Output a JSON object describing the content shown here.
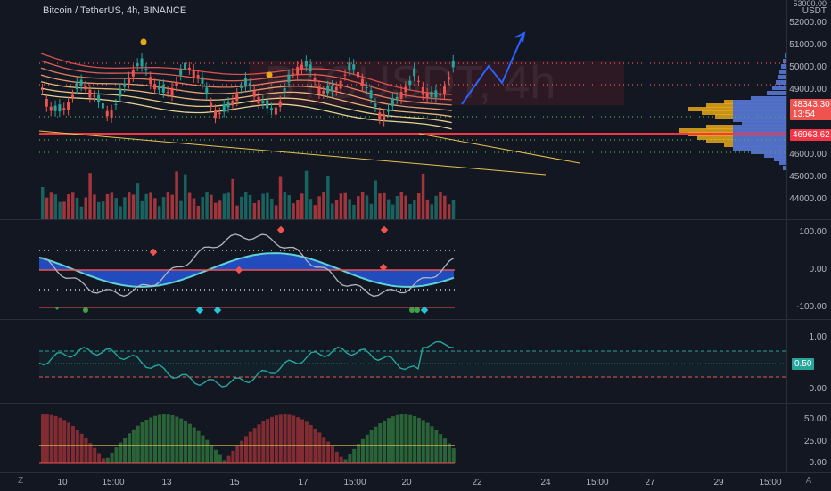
{
  "header": {
    "title": "Bitcoin / TetherUS, 4h, BINANCE",
    "watermark": "BTCUSDT, 4h"
  },
  "price_axis": {
    "currency": "USDT",
    "top_label": "53000.00",
    "labels": [
      "52000.00",
      "51000.00",
      "50000.00",
      "49000.00",
      "46000.00",
      "45000.00",
      "44000.00"
    ],
    "current_price": "48343.30",
    "countdown": "13:54",
    "hline_price": "46963.62"
  },
  "oscillator_pane": {
    "labels": [
      "100.00",
      "0.00",
      "-100.00"
    ]
  },
  "rsi_pane": {
    "labels": [
      "1.00",
      "0.00"
    ],
    "value": "0.50"
  },
  "hist_pane": {
    "labels": [
      "50.00",
      "25.00",
      "0.00"
    ]
  },
  "time_axis": {
    "labels": [
      "10",
      "15:00",
      "13",
      "15",
      "17",
      "15:00",
      "20",
      "22",
      "24",
      "15:00",
      "27",
      "29",
      "15:00"
    ]
  },
  "corner": {
    "left": "Z",
    "right": "A"
  },
  "colors": {
    "bg": "#131722",
    "up": "#26a69a",
    "down": "#ef5350",
    "projection": "#2962ff",
    "hline": "#f23645",
    "current_tag": "#ef5350"
  }
}
